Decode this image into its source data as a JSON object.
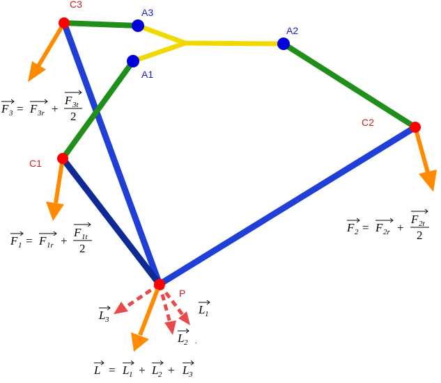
{
  "diagram": {
    "colors": {
      "blue_link": "#1f3fd6",
      "dark_blue_link": "#0f2a96",
      "green_link": "#1f8f1a",
      "yellow_link": "#f0d800",
      "orange_force": "#ff8a00",
      "red_arrow": "#e84a4a",
      "red_joint": "#ff0000",
      "blue_joint": "#0000dd"
    },
    "points": {
      "C1": "C1",
      "C2": "C2",
      "C3": "C3",
      "A1": "A1",
      "A2": "A2",
      "A3": "A3",
      "P": "P"
    },
    "equations": {
      "F1": {
        "lhs": "F",
        "lhs_sub": "1",
        "eq": "=",
        "r": "F",
        "r_sub": "1r",
        "plus": "+",
        "num": "F",
        "num_sub": "1t",
        "den": "2"
      },
      "F2": {
        "lhs": "F",
        "lhs_sub": "2",
        "eq": "=",
        "r": "F",
        "r_sub": "2r",
        "plus": "+",
        "num": "F",
        "num_sub": "2t",
        "den": "2"
      },
      "F3": {
        "lhs": "F",
        "lhs_sub": "3",
        "eq": "=",
        "r": "F",
        "r_sub": "3r",
        "plus": "+",
        "num": "F",
        "num_sub": "3t",
        "den": "2"
      },
      "L": {
        "lhs": "L",
        "eq": "=",
        "t1": "L",
        "s1": "1",
        "p1": "+",
        "t2": "L",
        "s2": "2",
        "p2": "+",
        "t3": "L",
        "s3": "3"
      }
    },
    "vectors": {
      "L1": {
        "name": "L",
        "sub": "1"
      },
      "L2": {
        "name": "L",
        "sub": "2"
      },
      "L3": {
        "name": "L",
        "sub": "3"
      }
    }
  }
}
